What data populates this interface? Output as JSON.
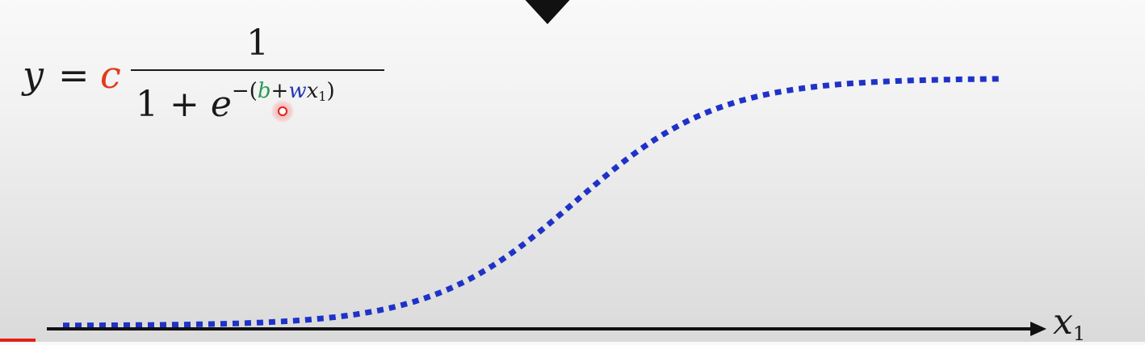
{
  "formula": {
    "lhs": "y",
    "equals": "=",
    "coefficient": "c",
    "numerator": "1",
    "denominator_one": "1",
    "plus": "+",
    "base": "e",
    "exponent_open": "−(",
    "b": "b",
    "exponent_plus": "+",
    "w": "w",
    "x": "x",
    "x_subscript": "1",
    "exponent_close": ")"
  },
  "axis": {
    "label": "x",
    "label_subscript": "1"
  },
  "colors": {
    "coefficient_c": "#e23b1a",
    "bias_b": "#2a9a55",
    "weight_w": "#2236b8",
    "curve": "#1f32c8",
    "axis": "#111111",
    "cursor": "#e0201a"
  },
  "icons": {
    "top_marker": "triangle-down-icon",
    "cursor": "pointer-dot-icon"
  }
}
